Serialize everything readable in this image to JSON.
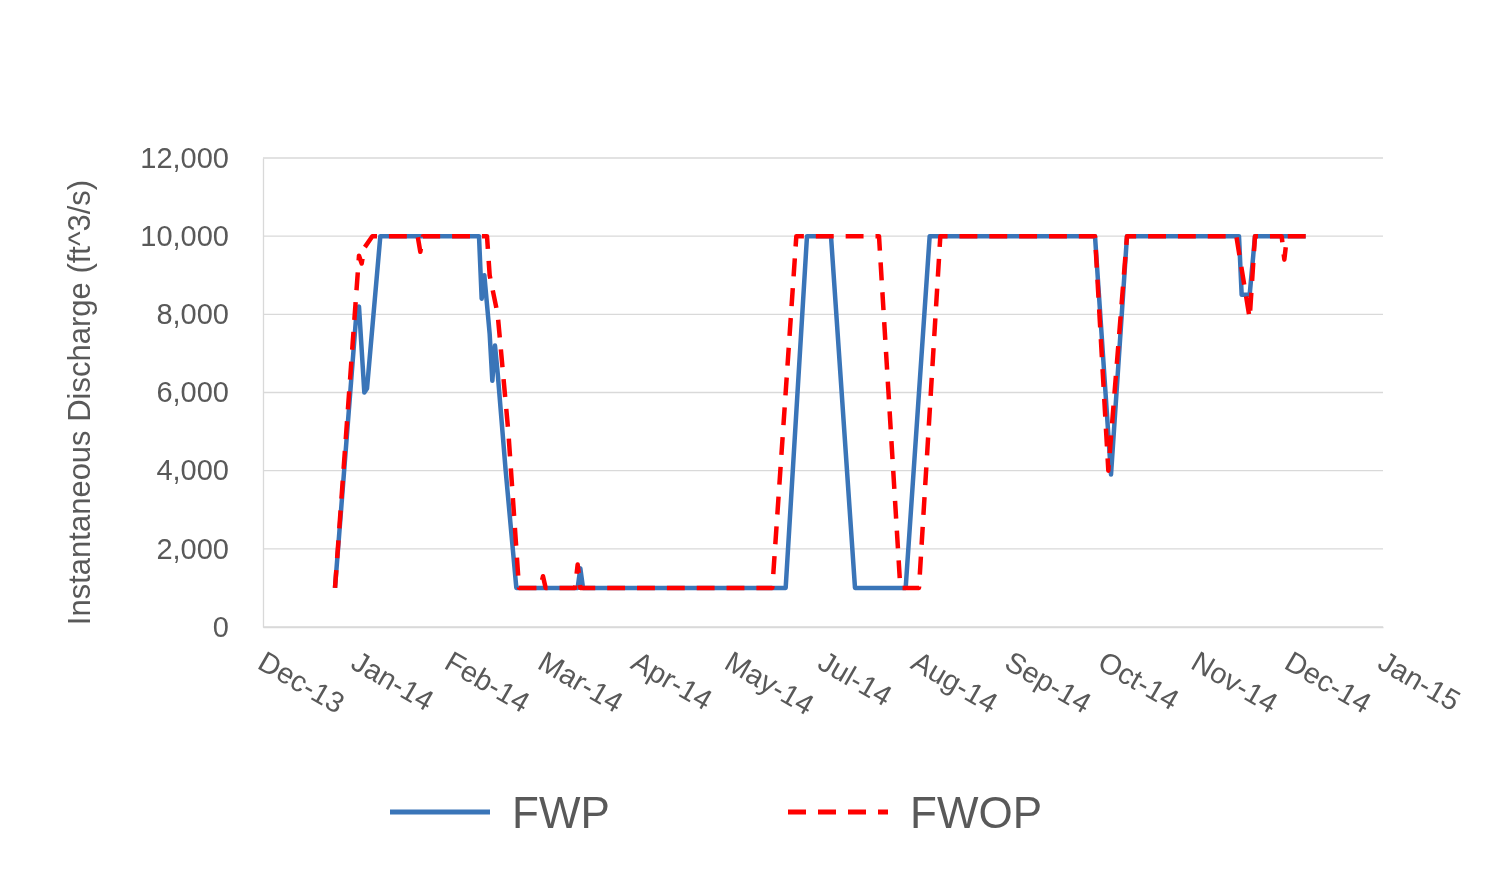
{
  "chart_data": {
    "type": "line",
    "ylabel": "Instantaneous Discharge (ft^3/s)",
    "xlim": [
      "2013-12-05",
      "2015-01-29"
    ],
    "xticks": [
      {
        "value": "2013-12-05",
        "label": "Dec-13"
      },
      {
        "value": "2014-01-09",
        "label": "Jan-14"
      },
      {
        "value": "2014-02-13",
        "label": "Feb-14"
      },
      {
        "value": "2014-03-20",
        "label": "Mar-14"
      },
      {
        "value": "2014-04-24",
        "label": "Apr-14"
      },
      {
        "value": "2014-05-29",
        "label": "May-14"
      },
      {
        "value": "2014-07-03",
        "label": "Jul-14"
      },
      {
        "value": "2014-08-07",
        "label": "Aug-14"
      },
      {
        "value": "2014-09-11",
        "label": "Sep-14"
      },
      {
        "value": "2014-10-16",
        "label": "Oct-14"
      },
      {
        "value": "2014-11-20",
        "label": "Nov-14"
      },
      {
        "value": "2014-12-25",
        "label": "Dec-14"
      },
      {
        "value": "2015-01-29",
        "label": "Jan-15"
      }
    ],
    "ylim": [
      0,
      12000
    ],
    "yticks": [
      {
        "value": 0,
        "label": "0"
      },
      {
        "value": 2000,
        "label": "2,000"
      },
      {
        "value": 4000,
        "label": "4,000"
      },
      {
        "value": 6000,
        "label": "6,000"
      },
      {
        "value": 8000,
        "label": "8,000"
      },
      {
        "value": 10000,
        "label": "10,000"
      },
      {
        "value": 12000,
        "label": "12,000"
      }
    ],
    "grid": "y",
    "legend": "bottom",
    "series": [
      {
        "name": "FWP",
        "color": "#3a75b8",
        "line_style": "solid",
        "x": [
          "2014-01-01",
          "2014-01-09",
          "2014-01-10",
          "2014-01-12",
          "2014-01-13",
          "2014-01-18",
          "2014-02-24",
          "2014-02-25",
          "2014-02-26",
          "2014-02-28",
          "2014-03-01",
          "2014-03-02",
          "2014-03-03",
          "2014-03-06",
          "2014-03-10",
          "2014-04-02",
          "2014-04-03",
          "2014-04-04",
          "2014-06-19",
          "2014-06-27",
          "2014-07-06",
          "2014-07-15",
          "2014-08-03",
          "2014-08-12",
          "2014-10-13",
          "2014-10-19",
          "2014-10-25",
          "2014-12-06",
          "2014-12-07",
          "2014-12-10",
          "2014-12-12",
          "2014-12-31"
        ],
        "values": [
          1000,
          8000,
          8200,
          6000,
          6100,
          10000,
          10000,
          8400,
          9000,
          7500,
          6300,
          7200,
          6500,
          4000,
          1000,
          1000,
          1500,
          1000,
          1000,
          10000,
          10000,
          1000,
          1000,
          10000,
          10000,
          3900,
          10000,
          10000,
          8500,
          8500,
          10000,
          10000
        ]
      },
      {
        "name": "FWOP",
        "color": "#ff0000",
        "line_style": "dashed",
        "x": [
          "2014-01-01",
          "2014-01-10",
          "2014-01-11",
          "2014-01-12",
          "2014-01-15",
          "2014-02-01",
          "2014-02-02",
          "2014-02-03",
          "2014-02-27",
          "2014-02-28",
          "2014-03-03",
          "2014-03-07",
          "2014-03-11",
          "2014-03-19",
          "2014-03-20",
          "2014-03-21",
          "2014-04-01",
          "2014-04-02",
          "2014-04-03",
          "2014-06-14",
          "2014-06-23",
          "2014-07-24",
          "2014-08-01",
          "2014-08-08",
          "2014-08-16",
          "2014-10-13",
          "2014-10-18",
          "2014-10-25",
          "2014-12-05",
          "2014-12-10",
          "2014-12-12",
          "2014-12-22",
          "2014-12-23",
          "2014-12-24",
          "2014-12-31"
        ],
        "values": [
          1000,
          9500,
          9300,
          9700,
          10000,
          10000,
          9600,
          10000,
          10000,
          9000,
          8000,
          5000,
          1000,
          1000,
          1300,
          1000,
          1000,
          1600,
          1000,
          1000,
          10000,
          10000,
          1000,
          1000,
          10000,
          10000,
          4000,
          10000,
          10000,
          7900,
          10000,
          10000,
          9400,
          10000,
          10000
        ]
      }
    ]
  }
}
